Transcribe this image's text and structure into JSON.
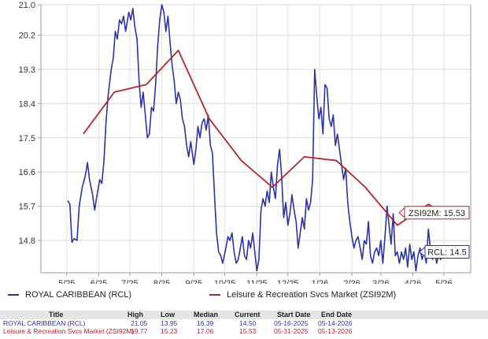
{
  "chart_data": {
    "type": "line",
    "x_ticks": [
      "5/25",
      "6/25",
      "7/25",
      "8/25",
      "9/25",
      "10/25",
      "11/25",
      "12/25",
      "1/26",
      "2/26",
      "3/26",
      "4/26",
      "5/26"
    ],
    "y_ticks": [
      "21.0",
      "20.2",
      "19.3",
      "18.4",
      "17.5",
      "16.6",
      "15.7",
      "14.8"
    ],
    "ylim": [
      13.95,
      21.0
    ],
    "xlim": [
      "2025-04-20",
      "2026-06-10"
    ],
    "grid": true,
    "series": [
      {
        "name": "ROYAL CARIBBEAN (RCL)",
        "color": "#2a33a8",
        "points": [
          [
            "2025-05-16",
            15.85
          ],
          [
            "2025-05-18",
            15.75
          ],
          [
            "2025-05-20",
            14.75
          ],
          [
            "2025-05-22",
            14.85
          ],
          [
            "2025-05-25",
            14.8
          ],
          [
            "2025-05-27",
            15.7
          ],
          [
            "2025-05-30",
            16.2
          ],
          [
            "2025-06-02",
            16.5
          ],
          [
            "2025-06-04",
            16.85
          ],
          [
            "2025-06-06",
            16.4
          ],
          [
            "2025-06-09",
            16.0
          ],
          [
            "2025-06-11",
            15.6
          ],
          [
            "2025-06-13",
            15.95
          ],
          [
            "2025-06-16",
            16.4
          ],
          [
            "2025-06-18",
            16.3
          ],
          [
            "2025-06-20",
            16.9
          ],
          [
            "2025-06-22",
            17.9
          ],
          [
            "2025-06-24",
            18.6
          ],
          [
            "2025-06-27",
            19.3
          ],
          [
            "2025-06-29",
            19.6
          ],
          [
            "2025-07-01",
            20.3
          ],
          [
            "2025-07-03",
            20.1
          ],
          [
            "2025-07-05",
            20.6
          ],
          [
            "2025-07-07",
            20.5
          ],
          [
            "2025-07-09",
            20.7
          ],
          [
            "2025-07-11",
            20.3
          ],
          [
            "2025-07-14",
            20.8
          ],
          [
            "2025-07-16",
            20.6
          ],
          [
            "2025-07-18",
            20.9
          ],
          [
            "2025-07-20",
            20.4
          ],
          [
            "2025-07-22",
            20.1
          ],
          [
            "2025-07-24",
            19.0
          ],
          [
            "2025-07-26",
            18.3
          ],
          [
            "2025-07-28",
            18.7
          ],
          [
            "2025-07-30",
            18.1
          ],
          [
            "2025-08-01",
            17.5
          ],
          [
            "2025-08-03",
            17.6
          ],
          [
            "2025-08-05",
            18.3
          ],
          [
            "2025-08-07",
            18.2
          ],
          [
            "2025-08-09",
            18.9
          ],
          [
            "2025-08-11",
            19.9
          ],
          [
            "2025-08-13",
            20.6
          ],
          [
            "2025-08-15",
            21.0
          ],
          [
            "2025-08-17",
            20.8
          ],
          [
            "2025-08-19",
            20.3
          ],
          [
            "2025-08-21",
            20.7
          ],
          [
            "2025-08-23",
            20.0
          ],
          [
            "2025-08-25",
            19.4
          ],
          [
            "2025-08-27",
            19.0
          ],
          [
            "2025-08-29",
            18.4
          ],
          [
            "2025-08-31",
            18.7
          ],
          [
            "2025-09-02",
            18.5
          ],
          [
            "2025-09-04",
            18.0
          ],
          [
            "2025-09-06",
            17.8
          ],
          [
            "2025-09-08",
            17.3
          ],
          [
            "2025-09-10",
            17.0
          ],
          [
            "2025-09-12",
            17.4
          ],
          [
            "2025-09-15",
            16.8
          ],
          [
            "2025-09-17",
            17.2
          ],
          [
            "2025-09-19",
            17.8
          ],
          [
            "2025-09-21",
            17.5
          ],
          [
            "2025-09-23",
            17.9
          ],
          [
            "2025-09-25",
            18.0
          ],
          [
            "2025-09-27",
            17.7
          ],
          [
            "2025-09-29",
            18.1
          ],
          [
            "2025-10-01",
            17.3
          ],
          [
            "2025-10-03",
            17.1
          ],
          [
            "2025-10-05",
            16.0
          ],
          [
            "2025-10-07",
            15.0
          ],
          [
            "2025-10-09",
            14.5
          ],
          [
            "2025-10-11",
            14.4
          ],
          [
            "2025-10-13",
            14.2
          ],
          [
            "2025-10-16",
            14.6
          ],
          [
            "2025-10-18",
            14.9
          ],
          [
            "2025-10-20",
            14.8
          ],
          [
            "2025-10-22",
            15.0
          ],
          [
            "2025-10-24",
            14.5
          ],
          [
            "2025-10-26",
            14.2
          ],
          [
            "2025-10-28",
            14.3
          ],
          [
            "2025-10-30",
            14.6
          ],
          [
            "2025-11-01",
            14.9
          ],
          [
            "2025-11-03",
            14.4
          ],
          [
            "2025-11-05",
            14.3
          ],
          [
            "2025-11-07",
            14.8
          ],
          [
            "2025-11-09",
            14.6
          ],
          [
            "2025-11-11",
            15.0
          ],
          [
            "2025-11-13",
            14.5
          ],
          [
            "2025-11-15",
            14.0
          ],
          [
            "2025-11-17",
            14.3
          ],
          [
            "2025-11-19",
            15.6
          ],
          [
            "2025-11-21",
            15.9
          ],
          [
            "2025-11-23",
            15.7
          ],
          [
            "2025-11-25",
            16.1
          ],
          [
            "2025-11-27",
            15.8
          ],
          [
            "2025-11-29",
            16.6
          ],
          [
            "2025-12-01",
            16.2
          ],
          [
            "2025-12-03",
            15.9
          ],
          [
            "2025-12-05",
            16.8
          ],
          [
            "2025-12-07",
            17.2
          ],
          [
            "2025-12-09",
            16.5
          ],
          [
            "2025-12-11",
            15.4
          ],
          [
            "2025-12-13",
            15.8
          ],
          [
            "2025-12-15",
            15.2
          ],
          [
            "2025-12-17",
            15.5
          ],
          [
            "2025-12-19",
            16.0
          ],
          [
            "2025-12-21",
            15.6
          ],
          [
            "2025-12-23",
            15.3
          ],
          [
            "2025-12-25",
            14.6
          ],
          [
            "2025-12-27",
            15.0
          ],
          [
            "2025-12-29",
            15.4
          ],
          [
            "2025-12-31",
            15.1
          ],
          [
            "2026-01-02",
            15.9
          ],
          [
            "2026-01-04",
            15.6
          ],
          [
            "2026-01-06",
            15.8
          ],
          [
            "2026-01-08",
            16.4
          ],
          [
            "2026-01-10",
            19.3
          ],
          [
            "2026-01-12",
            18.6
          ],
          [
            "2026-01-14",
            18.0
          ],
          [
            "2026-01-16",
            18.3
          ],
          [
            "2026-01-18",
            17.6
          ],
          [
            "2026-01-20",
            18.9
          ],
          [
            "2026-01-22",
            18.8
          ],
          [
            "2026-01-24",
            18.0
          ],
          [
            "2026-01-26",
            17.8
          ],
          [
            "2026-01-28",
            18.1
          ],
          [
            "2026-01-30",
            17.3
          ],
          [
            "2026-02-01",
            17.6
          ],
          [
            "2026-02-03",
            17.2
          ],
          [
            "2026-02-05",
            16.8
          ],
          [
            "2026-02-07",
            16.4
          ],
          [
            "2026-02-09",
            16.7
          ],
          [
            "2026-02-11",
            15.8
          ],
          [
            "2026-02-13",
            15.3
          ],
          [
            "2026-02-15",
            14.9
          ],
          [
            "2026-02-17",
            14.6
          ],
          [
            "2026-02-19",
            14.8
          ],
          [
            "2026-02-21",
            14.9
          ],
          [
            "2026-02-23",
            14.6
          ],
          [
            "2026-02-25",
            14.3
          ],
          [
            "2026-02-27",
            14.8
          ],
          [
            "2026-03-01",
            14.7
          ],
          [
            "2026-03-03",
            15.3
          ],
          [
            "2026-03-05",
            14.4
          ],
          [
            "2026-03-07",
            14.2
          ],
          [
            "2026-03-09",
            14.5
          ],
          [
            "2026-03-11",
            14.6
          ],
          [
            "2026-03-13",
            14.4
          ],
          [
            "2026-03-15",
            14.8
          ],
          [
            "2026-03-17",
            14.2
          ],
          [
            "2026-03-19",
            14.9
          ],
          [
            "2026-03-21",
            15.7
          ],
          [
            "2026-03-23",
            15.2
          ],
          [
            "2026-03-25",
            14.7
          ],
          [
            "2026-03-27",
            15.5
          ],
          [
            "2026-03-29",
            14.4
          ],
          [
            "2026-03-31",
            14.5
          ],
          [
            "2026-04-02",
            14.2
          ],
          [
            "2026-04-04",
            14.5
          ],
          [
            "2026-04-06",
            14.3
          ],
          [
            "2026-04-08",
            14.6
          ],
          [
            "2026-04-10",
            14.1
          ],
          [
            "2026-04-12",
            14.7
          ],
          [
            "2026-04-14",
            14.3
          ],
          [
            "2026-04-16",
            14.5
          ],
          [
            "2026-04-18",
            14.0
          ],
          [
            "2026-04-20",
            14.4
          ],
          [
            "2026-04-22",
            14.6
          ],
          [
            "2026-04-24",
            14.3
          ],
          [
            "2026-04-26",
            14.5
          ],
          [
            "2026-04-28",
            14.2
          ],
          [
            "2026-04-30",
            15.1
          ],
          [
            "2026-05-02",
            14.6
          ],
          [
            "2026-05-04",
            14.3
          ],
          [
            "2026-05-06",
            14.6
          ],
          [
            "2026-05-08",
            14.2
          ],
          [
            "2026-05-10",
            14.4
          ],
          [
            "2026-05-12",
            14.3
          ],
          [
            "2026-05-14",
            14.5
          ]
        ]
      },
      {
        "name": "Leisure & Recreation Svcs Market (ZSI92M)",
        "color": "#b3262b",
        "points": [
          [
            "2025-05-31",
            17.6
          ],
          [
            "2025-06-30",
            18.7
          ],
          [
            "2025-07-31",
            18.9
          ],
          [
            "2025-08-31",
            19.8
          ],
          [
            "2025-09-30",
            18.0
          ],
          [
            "2025-10-31",
            16.9
          ],
          [
            "2025-11-30",
            16.2
          ],
          [
            "2025-12-31",
            17.0
          ],
          [
            "2026-01-31",
            16.9
          ],
          [
            "2026-02-28",
            16.2
          ],
          [
            "2026-03-31",
            15.2
          ],
          [
            "2026-04-30",
            15.75
          ],
          [
            "2026-05-13",
            15.53
          ]
        ]
      }
    ],
    "callouts": [
      {
        "label": "ZSI92M: 15.53",
        "value": 15.53,
        "color": "#b3262b"
      },
      {
        "label": "RCL: 14.5",
        "value": 14.5,
        "color": "#2a33a8"
      }
    ],
    "legend_position": "bottom"
  },
  "legend": [
    {
      "label": "ROYAL CARIBBEAN (RCL)",
      "color": "#2a33a8"
    },
    {
      "label": "Leisure & Recreation Svcs Market (ZSI92M)",
      "color": "#b3262b"
    }
  ],
  "stats_table": {
    "headers": {
      "title": "Title",
      "high": "High",
      "low": "Low",
      "median": "Median",
      "current": "Current",
      "start": "Start Date",
      "end": "End Date"
    },
    "rows": [
      {
        "title": "ROYAL CARIBBEAN (RCL)",
        "high": "21.05",
        "low": "13.95",
        "median": "16.39",
        "current": "14.50",
        "start": "05-16-2025",
        "end": "05-14-2026"
      },
      {
        "title": "Leisure & Recreation Svcs Market (ZSI92M)",
        "high": "19.77",
        "low": "15.23",
        "median": "17.06",
        "current": "15.53",
        "start": "05-31-2025",
        "end": "05-13-2026"
      }
    ]
  }
}
